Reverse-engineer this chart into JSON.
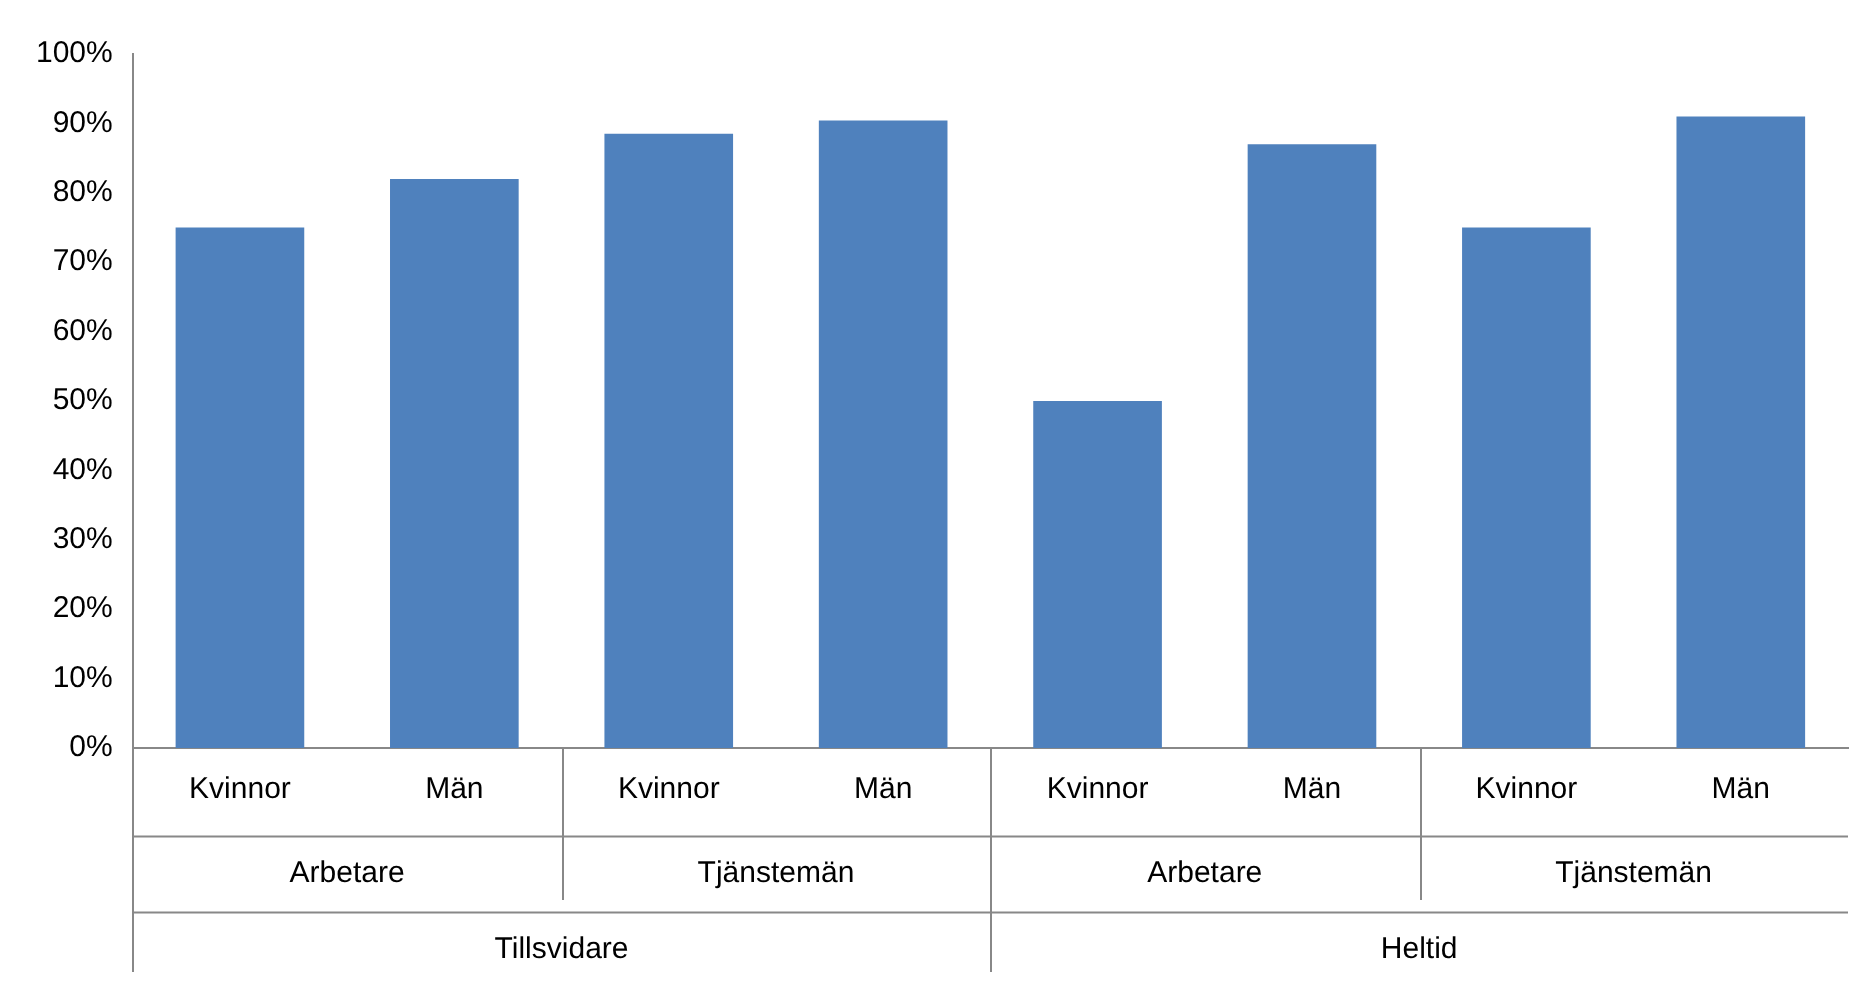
{
  "chart_data": {
    "type": "bar",
    "categories": [
      "Kvinnor",
      "Män",
      "Kvinnor",
      "Män",
      "Kvinnor",
      "Män",
      "Kvinnor",
      "Män"
    ],
    "values": [
      75,
      82,
      88.5,
      90.4,
      50,
      87,
      75,
      91
    ],
    "color": "#4f81bd",
    "ylim": [
      0,
      100
    ],
    "yticks": [
      {
        "value": 0,
        "label": "0%"
      },
      {
        "value": 10,
        "label": "10%"
      },
      {
        "value": 20,
        "label": "20%"
      },
      {
        "value": 30,
        "label": "30%"
      },
      {
        "value": 40,
        "label": "40%"
      },
      {
        "value": 50,
        "label": "50%"
      },
      {
        "value": 60,
        "label": "60%"
      },
      {
        "value": 70,
        "label": "70%"
      },
      {
        "value": 80,
        "label": "80%"
      },
      {
        "value": 90,
        "label": "90%"
      },
      {
        "value": 100,
        "label": "100%"
      }
    ],
    "grid": false,
    "legend": false,
    "annotations": [
      "Arbetare",
      "Tjänstemän",
      "Arbetare",
      "Tjänstemän",
      "Tillsvidare",
      "Heltid"
    ]
  }
}
